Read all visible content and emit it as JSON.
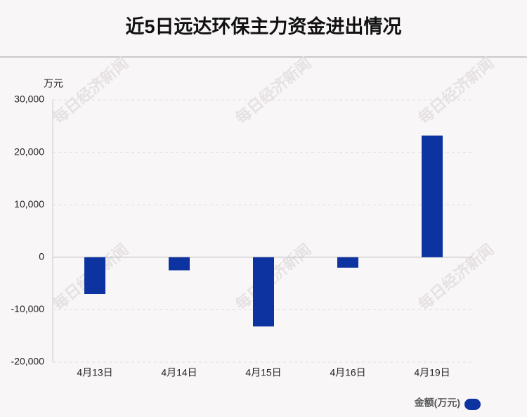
{
  "chart_data": {
    "type": "bar",
    "title": "近5日远达环保主力资金进出情况",
    "y_unit": "万元",
    "categories": [
      "4月13日",
      "4月14日",
      "4月15日",
      "4月16日",
      "4月19日"
    ],
    "series": [
      {
        "name": "金额(万元)",
        "color": "#0d33a0",
        "values": [
          -7000,
          -2500,
          -13200,
          -2000,
          23200
        ]
      }
    ],
    "ylim": [
      -20000,
      30000
    ],
    "yticks": [
      {
        "value": -20000,
        "label": "-20,000"
      },
      {
        "value": -10000,
        "label": "-10,000"
      },
      0,
      {
        "value": 10000,
        "label": "10,000"
      },
      {
        "value": 20000,
        "label": "20,000"
      },
      {
        "value": 30000,
        "label": "30,000"
      }
    ],
    "grid": true,
    "legend": "bottom-right",
    "watermark": "每日经济新闻"
  }
}
